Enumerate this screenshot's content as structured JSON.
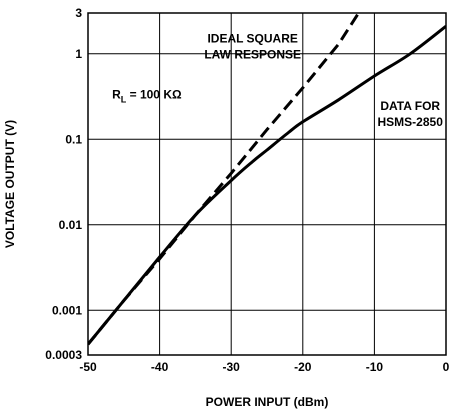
{
  "chart_data": {
    "type": "line",
    "title": "",
    "xlabel": "POWER INPUT (dBm)",
    "ylabel": "VOLTAGE OUTPUT (V)",
    "xlim": [
      -50,
      0
    ],
    "ylim": [
      0.0003,
      3
    ],
    "yscale": "log",
    "grid": true,
    "x_ticks": [
      {
        "value": -50,
        "label": "-50"
      },
      {
        "value": -40,
        "label": "-40"
      },
      {
        "value": -30,
        "label": "-30"
      },
      {
        "value": -20,
        "label": "-20"
      },
      {
        "value": -10,
        "label": "-10"
      },
      {
        "value": 0,
        "label": "0"
      }
    ],
    "y_ticks": [
      {
        "value": 0.0003,
        "label": "0.0003"
      },
      {
        "value": 0.001,
        "label": "0.001"
      },
      {
        "value": 0.01,
        "label": "0.01"
      },
      {
        "value": 0.1,
        "label": "0.1"
      },
      {
        "value": 1,
        "label": "1"
      },
      {
        "value": 3,
        "label": "3"
      }
    ],
    "series": [
      {
        "style": "dashed",
        "color": "#000000",
        "x": [
          -50,
          -45,
          -40,
          -35,
          -30,
          -25,
          -20,
          -15,
          -12.2
        ],
        "y": [
          0.0004,
          0.0013,
          0.004,
          0.013,
          0.04,
          0.13,
          0.4,
          1.3,
          3
        ]
      },
      {
        "style": "solid",
        "color": "#000000",
        "x": [
          -50,
          -45,
          -40,
          -35,
          -30,
          -27,
          -25,
          -22,
          -20,
          -15,
          -10,
          -5,
          0
        ],
        "y": [
          0.0004,
          0.0013,
          0.0042,
          0.013,
          0.033,
          0.055,
          0.075,
          0.12,
          0.16,
          0.29,
          0.55,
          1.0,
          2.1
        ]
      }
    ],
    "annotations": [
      {
        "id": "ideal",
        "lines": [
          "IDEAL SQUARE",
          "LAW RESPONSE"
        ],
        "x": -27,
        "y": 1.1
      },
      {
        "id": "rl",
        "text_main": "R",
        "text_sub": "L",
        "text_rest": " = 100 KΩ",
        "x": -43,
        "y": 0.3
      },
      {
        "id": "data",
        "lines": [
          "DATA FOR",
          "HSMS-2850"
        ],
        "x": -5,
        "y": 0.14
      }
    ]
  }
}
